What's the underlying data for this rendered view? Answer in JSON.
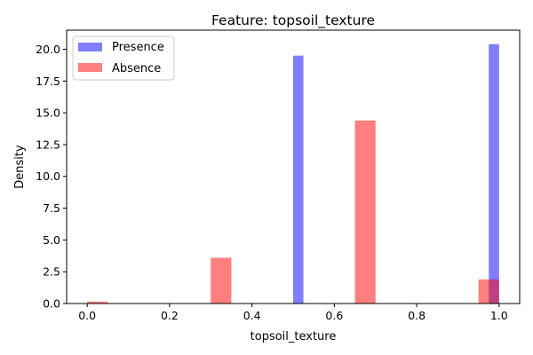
{
  "chart_data": {
    "type": "bar",
    "title": "Feature: topsoil_texture",
    "xlabel": "topsoil_texture",
    "ylabel": "Density",
    "xlim": [
      -0.05,
      1.05
    ],
    "ylim": [
      0,
      21.5
    ],
    "xticks": [
      "0.0",
      "0.2",
      "0.4",
      "0.6",
      "0.8",
      "1.0"
    ],
    "yticks": [
      "0.0",
      "2.5",
      "5.0",
      "7.5",
      "10.0",
      "12.5",
      "15.0",
      "17.5",
      "20.0"
    ],
    "grid": false,
    "legend_position": "top-left",
    "series": [
      {
        "name": "Presence",
        "color": "#0000ff",
        "opacity": 0.5,
        "bins": [
          {
            "x0": 0.5,
            "x1": 0.525,
            "value": 19.5
          },
          {
            "x0": 0.975,
            "x1": 1.0,
            "value": 20.4
          }
        ]
      },
      {
        "name": "Absence",
        "color": "#ff0000",
        "opacity": 0.5,
        "bins": [
          {
            "x0": 0.0,
            "x1": 0.05,
            "value": 0.15
          },
          {
            "x0": 0.3,
            "x1": 0.35,
            "value": 3.6
          },
          {
            "x0": 0.65,
            "x1": 0.7,
            "value": 14.4
          },
          {
            "x0": 0.95,
            "x1": 1.0,
            "value": 1.9
          }
        ]
      }
    ]
  }
}
